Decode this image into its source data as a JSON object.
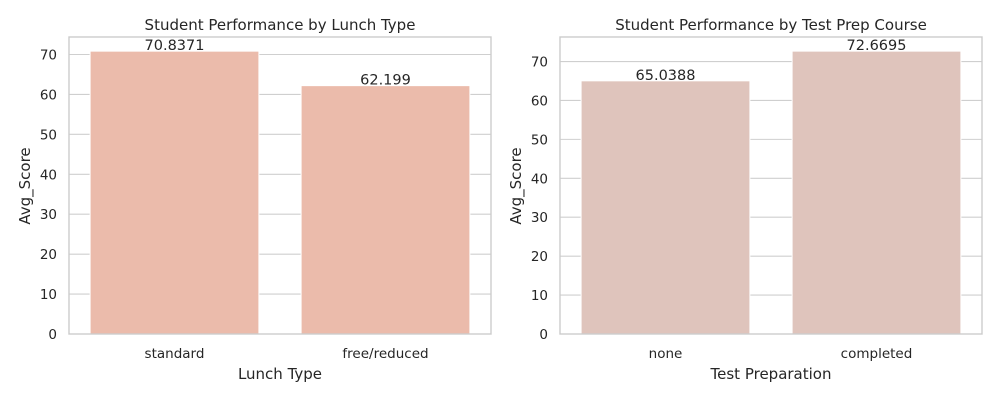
{
  "chart_data": [
    {
      "type": "bar",
      "title": "Student Performance by Lunch Type",
      "xlabel": "Lunch Type",
      "ylabel": "Avg_Score",
      "categories": [
        "standard",
        "free/reduced"
      ],
      "values": [
        70.8371,
        62.199
      ],
      "value_labels": [
        "70.8371",
        "62.199"
      ],
      "ylim": [
        0,
        74.38
      ],
      "yticks": [
        0,
        10,
        20,
        30,
        40,
        50,
        60,
        70
      ],
      "grid": "y",
      "bar_color": "#ebbbab"
    },
    {
      "type": "bar",
      "title": "Student Performance by Test Prep Course",
      "xlabel": "Test Preparation",
      "ylabel": "Avg_Score",
      "categories": [
        "none",
        "completed"
      ],
      "values": [
        65.0388,
        72.6695
      ],
      "value_labels": [
        "65.0388",
        "72.6695"
      ],
      "ylim": [
        0,
        76.3
      ],
      "yticks": [
        0,
        10,
        20,
        30,
        40,
        50,
        60,
        70
      ],
      "grid": "y",
      "bar_color": "#dfc4bc"
    }
  ]
}
